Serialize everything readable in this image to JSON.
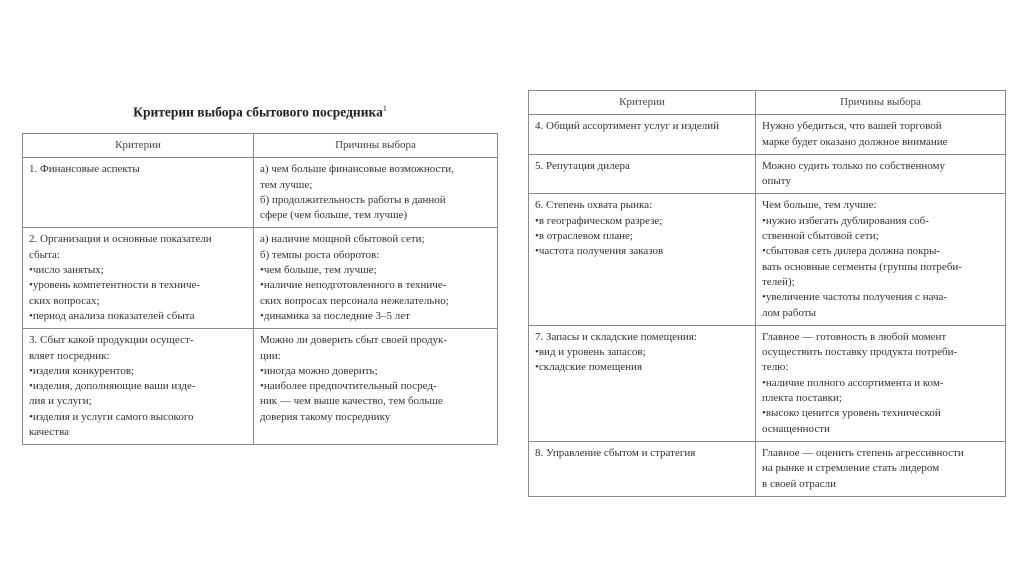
{
  "title": "Критерии выбора сбытового посредника",
  "title_footnote": "1",
  "headers": {
    "criteria": "Критерии",
    "reasons": "Причины выбора"
  },
  "left_table": [
    {
      "criteria": [
        "1. Финансовые аспекты"
      ],
      "reasons": [
        "а) чем больше финансовые возможности,",
        "тем лучше;",
        "б) продолжительность работы в данной",
        "сфере (чем больше, тем лучше)"
      ]
    },
    {
      "criteria": [
        "2. Организация и основные показатели",
        "сбыта:",
        "• число занятых;",
        "• уровень компетентности в техниче-",
        "ских вопросах;",
        "• период анализа показателей сбыта"
      ],
      "reasons": [
        "а) наличие мощной сбытовой сети;",
        "б) темпы роста оборотов:",
        "• чем больше, тем лучше;",
        "• наличие неподготовленного в техниче-",
        "ских вопросах персонала нежелательно;",
        "• динамика за последние 3–5 лет"
      ]
    },
    {
      "criteria": [
        "3. Сбыт какой продукции осущест-",
        "вляет посредник:",
        "• изделия конкурентов;",
        "• изделия, дополняющие ваши изде-",
        "лия и услуги;",
        "• изделия и услуги самого высокого",
        "качества"
      ],
      "reasons": [
        "Можно ли доверить сбыт своей продук-",
        "ции:",
        "• иногда можно доверить;",
        "• наиболее предпочтительный посред-",
        "ник — чем выше качество, тем больше",
        "доверия такому посреднику"
      ]
    }
  ],
  "right_table": [
    {
      "criteria": [
        "4. Общий ассортимент услуг и изделий"
      ],
      "reasons": [
        "Нужно убедиться, что вашей торговой",
        "марке будет оказано должное внимание"
      ]
    },
    {
      "criteria": [
        "5. Репутация дилера"
      ],
      "reasons": [
        "Можно судить только по собственному",
        "опыту"
      ]
    },
    {
      "criteria": [
        "6. Степень охвата рынка:",
        "• в географическом разрезе;",
        "• в отраслевом плане;",
        "• частота получения заказов"
      ],
      "reasons": [
        "Чем больше, тем лучше:",
        "• нужно избегать дублирования соб-",
        "ственной сбытовой сети;",
        "• сбытовая сеть дилера должна покры-",
        "вать основные сегменты (группы потреби-",
        "телей);",
        "• увеличение частоты получения с нача-",
        "лом работы"
      ]
    },
    {
      "criteria": [
        "7. Запасы и складские помещения:",
        "• вид и уровень запасов;",
        "• складские помещения"
      ],
      "reasons": [
        "Главное — готовность в любой момент",
        "осуществить поставку продукта потреби-",
        "телю:",
        "• наличие полного ассортимента и ком-",
        "плекта поставки;",
        "• высоко ценится уровень технической",
        "оснащенности"
      ]
    },
    {
      "criteria": [
        "8. Управление сбытом и стратегия"
      ],
      "reasons": [
        "Главное — оценить степень агрессивности",
        "на рынке и стремление стать лидером",
        "в своей отрасли"
      ]
    }
  ]
}
